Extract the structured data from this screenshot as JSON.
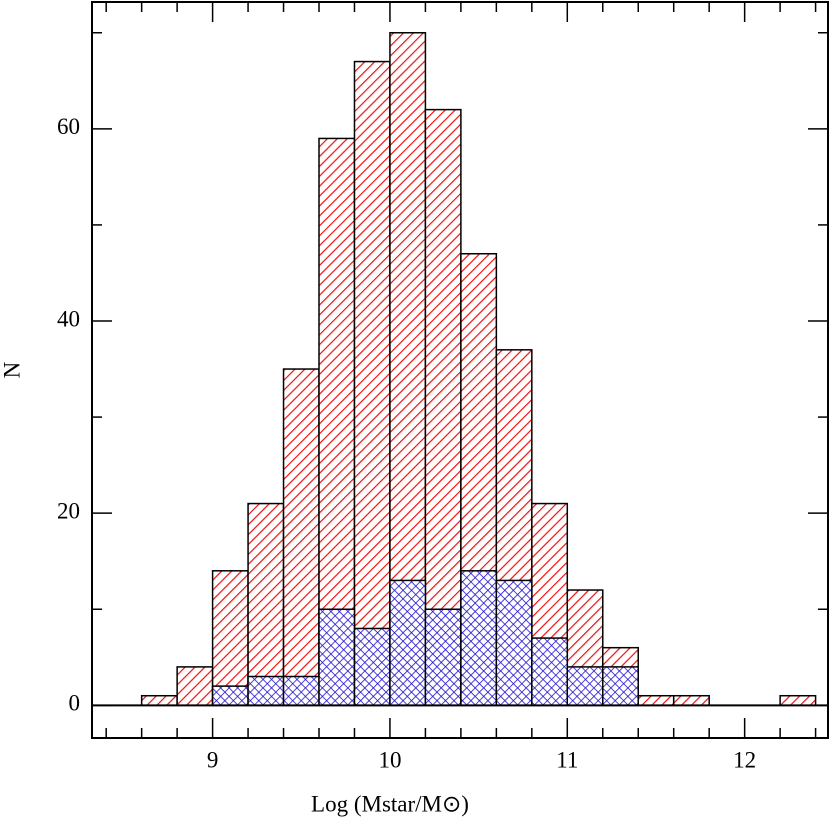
{
  "chart_data": {
    "type": "histogram",
    "xlabel": "Log (Mstar/M⊙)",
    "ylabel": "N",
    "series": [
      {
        "color": "#ee1111",
        "hatch": "single",
        "bins": [
          8.6,
          8.8,
          9.0,
          9.2,
          9.4,
          9.6,
          9.8,
          10.0,
          10.2,
          10.4,
          10.6,
          10.8,
          11.0,
          11.2,
          11.4,
          11.6,
          11.8,
          12.0,
          12.2,
          12.4
        ],
        "values": [
          1,
          4,
          14,
          21,
          35,
          59,
          67,
          70,
          62,
          47,
          37,
          21,
          12,
          6,
          1,
          1,
          0,
          0,
          1
        ]
      },
      {
        "color": "#2211cc",
        "hatch": "cross",
        "bins": [
          9.0,
          9.2,
          9.4,
          9.6,
          9.8,
          10.0,
          10.2,
          10.4,
          10.6,
          10.8,
          11.0,
          11.2,
          11.4
        ],
        "values": [
          2,
          3,
          3,
          10,
          8,
          13,
          10,
          14,
          13,
          7,
          4,
          4
        ]
      }
    ],
    "xlim": [
      8.32,
      12.47
    ],
    "ylim": [
      -3.4,
      73.2
    ],
    "xticks": [
      9,
      10,
      11,
      12
    ],
    "yticks": [
      0,
      20,
      40,
      60
    ],
    "xminorticks": [
      8.4,
      8.6,
      8.8,
      9.2,
      9.4,
      9.6,
      9.8,
      10.2,
      10.4,
      10.6,
      10.8,
      11.2,
      11.4,
      11.6,
      11.8,
      12.2,
      12.4
    ],
    "yminorticks": [
      10,
      30,
      50,
      70
    ]
  }
}
